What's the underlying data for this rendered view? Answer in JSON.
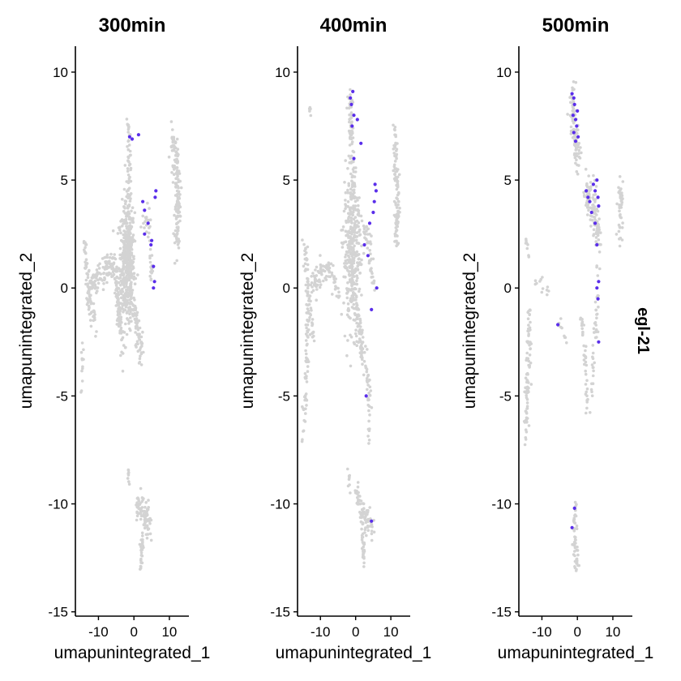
{
  "figure": {
    "feature_label": "egl-21",
    "colors": {
      "low": "#d3d3d3",
      "high": "#5a2eea",
      "axis": "#000000"
    }
  },
  "chart_data": [
    {
      "type": "scatter",
      "title": "300min",
      "xlabel": "umapunintegrated_1",
      "ylabel": "umapunintegrated_2",
      "xlim": [
        -16.5,
        15.5
      ],
      "ylim": [
        -15.2,
        11.2
      ],
      "xticks": [
        -10,
        0,
        10
      ],
      "xtick_labels": [
        "-10",
        "0",
        "10"
      ],
      "yticks": [
        -15,
        -10,
        -5,
        0,
        5,
        10
      ],
      "ytick_labels": [
        "-15",
        "-10",
        "-5",
        "0",
        "5",
        "10"
      ],
      "grid": false,
      "clusters": [
        {
          "shape": "blob",
          "x0": -2,
          "y0": 1.0,
          "rx": 2.0,
          "ry": 2.6,
          "n": 420
        },
        {
          "shape": "line",
          "points": [
            [
              -1.5,
              7.5
            ],
            [
              -1.2,
              4.0
            ],
            [
              -1.0,
              1.0
            ]
          ],
          "w": 0.5,
          "n": 90
        },
        {
          "shape": "line",
          "points": [
            [
              -1.2,
              0.0
            ],
            [
              0.5,
              -1.5
            ],
            [
              2.0,
              -3.0
            ]
          ],
          "w": 0.6,
          "n": 80
        },
        {
          "shape": "line",
          "points": [
            [
              -14,
              2.0
            ],
            [
              -12.5,
              -0.5
            ],
            [
              -11,
              -1.5
            ]
          ],
          "w": 0.5,
          "n": 70
        },
        {
          "shape": "line",
          "points": [
            [
              -13,
              0.0
            ],
            [
              -10,
              0.5
            ],
            [
              -7.0,
              1.0
            ]
          ],
          "w": 0.5,
          "n": 90
        },
        {
          "shape": "line",
          "points": [
            [
              -7.0,
              1.5
            ],
            [
              -5.0,
              0.5
            ],
            [
              -4.0,
              -1.5
            ]
          ],
          "w": 0.5,
          "n": 70
        },
        {
          "shape": "line",
          "points": [
            [
              -4.5,
              -0.5
            ],
            [
              -4.0,
              -2.0
            ],
            [
              -3.0,
              -3.0
            ]
          ],
          "w": 0.4,
          "n": 40
        },
        {
          "shape": "line",
          "points": [
            [
              -14.5,
              -2.5
            ],
            [
              -14.8,
              -4.8
            ]
          ],
          "w": 0.3,
          "n": 12
        },
        {
          "shape": "line",
          "points": [
            [
              11.0,
              7.0
            ],
            [
              12.5,
              4.5
            ],
            [
              12.0,
              2.0
            ]
          ],
          "w": 0.7,
          "n": 150
        },
        {
          "shape": "line",
          "points": [
            [
              2.0,
              3.0
            ],
            [
              4.0,
              3.5
            ],
            [
              5.0,
              0.5
            ]
          ],
          "w": 0.5,
          "n": 40
        },
        {
          "shape": "line",
          "points": [
            [
              1.0,
              -10.0
            ],
            [
              3.0,
              -10.5
            ],
            [
              4.5,
              -11.0
            ]
          ],
          "w": 0.6,
          "n": 90
        },
        {
          "shape": "line",
          "points": [
            [
              2.5,
              -11.5
            ],
            [
              1.8,
              -13.0
            ]
          ],
          "w": 0.3,
          "n": 30
        },
        {
          "shape": "line",
          "points": [
            [
              -1.5,
              -8.5
            ],
            [
              -1.3,
              -9.2
            ]
          ],
          "w": 0.2,
          "n": 8
        }
      ],
      "expressing": [
        [
          -1.2,
          7.0
        ],
        [
          -0.5,
          6.9
        ],
        [
          1.3,
          7.1
        ],
        [
          2.5,
          4.0
        ],
        [
          3.0,
          3.6
        ],
        [
          4.0,
          3.0
        ],
        [
          4.8,
          2.0
        ],
        [
          5.0,
          2.2
        ],
        [
          6.0,
          4.2
        ],
        [
          6.2,
          4.5
        ],
        [
          5.5,
          0.0
        ],
        [
          5.8,
          0.3
        ],
        [
          3.0,
          2.5
        ],
        [
          5.5,
          1.0
        ]
      ]
    },
    {
      "type": "scatter",
      "title": "400min",
      "xlabel": "umapunintegrated_1",
      "ylabel": "umapunintegrated_2",
      "xlim": [
        -16.5,
        15.5
      ],
      "ylim": [
        -15.2,
        11.2
      ],
      "xticks": [
        -10,
        0,
        10
      ],
      "xtick_labels": [
        "-10",
        "0",
        "10"
      ],
      "yticks": [
        -15,
        -10,
        -5,
        0,
        5,
        10
      ],
      "ytick_labels": [
        "-15",
        "-10",
        "-5",
        "0",
        "5",
        "10"
      ],
      "grid": false,
      "clusters": [
        {
          "shape": "blob",
          "x0": -1,
          "y0": 1.5,
          "rx": 2.3,
          "ry": 2.8,
          "n": 320
        },
        {
          "shape": "line",
          "points": [
            [
              -1.5,
              9.0
            ],
            [
              -1.0,
              6.0
            ],
            [
              -0.5,
              3.0
            ]
          ],
          "w": 0.6,
          "n": 90
        },
        {
          "shape": "line",
          "points": [
            [
              -13,
              8.5
            ],
            [
              -12.8,
              8.0
            ]
          ],
          "w": 0.2,
          "n": 6
        },
        {
          "shape": "line",
          "points": [
            [
              -13,
              0.0
            ],
            [
              -8.0,
              1.0
            ],
            [
              -5.0,
              0.0
            ]
          ],
          "w": 0.6,
          "n": 90
        },
        {
          "shape": "line",
          "points": [
            [
              -14.5,
              2.0
            ],
            [
              -13.5,
              -0.5
            ],
            [
              -12,
              -2.0
            ]
          ],
          "w": 0.5,
          "n": 60
        },
        {
          "shape": "line",
          "points": [
            [
              -13.5,
              -1.0
            ],
            [
              -14.0,
              -4.0
            ],
            [
              -14.8,
              -7.0
            ]
          ],
          "w": 0.5,
          "n": 60
        },
        {
          "shape": "line",
          "points": [
            [
              -1.0,
              0.0
            ],
            [
              2.0,
              -3.0
            ],
            [
              4.0,
              -5.0
            ]
          ],
          "w": 0.6,
          "n": 100
        },
        {
          "shape": "line",
          "points": [
            [
              3.5,
              -3.5
            ],
            [
              3.8,
              -7.0
            ]
          ],
          "w": 0.3,
          "n": 15
        },
        {
          "shape": "line",
          "points": [
            [
              11.0,
              7.0
            ],
            [
              12.0,
              4.5
            ],
            [
              11.5,
              1.8
            ]
          ],
          "w": 0.6,
          "n": 100
        },
        {
          "shape": "line",
          "points": [
            [
              2.0,
              3.0
            ],
            [
              4.0,
              2.0
            ],
            [
              5.0,
              0.0
            ]
          ],
          "w": 0.5,
          "n": 45
        },
        {
          "shape": "line",
          "points": [
            [
              0.0,
              -9.5
            ],
            [
              2.0,
              -10.5
            ],
            [
              5.0,
              -11.0
            ]
          ],
          "w": 0.6,
          "n": 80
        },
        {
          "shape": "line",
          "points": [
            [
              2.0,
              -11.5
            ],
            [
              2.5,
              -13.0
            ]
          ],
          "w": 0.3,
          "n": 25
        },
        {
          "shape": "line",
          "points": [
            [
              -2.0,
              -8.5
            ],
            [
              -1.7,
              -9.5
            ]
          ],
          "w": 0.2,
          "n": 8
        }
      ],
      "expressing": [
        [
          -1.5,
          8.8
        ],
        [
          -1.2,
          8.5
        ],
        [
          -0.8,
          9.1
        ],
        [
          -1.0,
          7.5
        ],
        [
          -0.5,
          8.0
        ],
        [
          0.5,
          7.8
        ],
        [
          1.5,
          6.7
        ],
        [
          -0.5,
          6.0
        ],
        [
          5.5,
          4.8
        ],
        [
          5.8,
          4.5
        ],
        [
          5.3,
          4.0
        ],
        [
          5.0,
          3.5
        ],
        [
          4.0,
          3.0
        ],
        [
          2.5,
          2.0
        ],
        [
          3.5,
          1.5
        ],
        [
          6.0,
          0.0
        ],
        [
          4.5,
          -1.0
        ],
        [
          3.0,
          -5.0
        ],
        [
          4.5,
          -10.8
        ]
      ]
    },
    {
      "type": "scatter",
      "title": "500min",
      "xlabel": "umapunintegrated_1",
      "ylabel": "umapunintegrated_2",
      "xlim": [
        -16.5,
        15.5
      ],
      "ylim": [
        -15.2,
        11.2
      ],
      "xticks": [
        -10,
        0,
        10
      ],
      "xtick_labels": [
        "-10",
        "0",
        "10"
      ],
      "yticks": [
        -15,
        -10,
        -5,
        0,
        5,
        10
      ],
      "ytick_labels": [
        "-15",
        "-10",
        "-5",
        "0",
        "5",
        "10"
      ],
      "grid": false,
      "clusters": [
        {
          "shape": "line",
          "points": [
            [
              -13.5,
              -1.0
            ],
            [
              -14.0,
              -4.0
            ],
            [
              -14.5,
              -7.0
            ]
          ],
          "w": 0.5,
          "n": 80
        },
        {
          "shape": "line",
          "points": [
            [
              -14.5,
              2.2
            ],
            [
              -13.5,
              1.5
            ]
          ],
          "w": 0.2,
          "n": 8
        },
        {
          "shape": "line",
          "points": [
            [
              -12.0,
              0.3
            ],
            [
              -9.0,
              0.2
            ],
            [
              -8.0,
              -0.5
            ]
          ],
          "w": 0.3,
          "n": 12
        },
        {
          "shape": "line",
          "points": [
            [
              -1.5,
              9.0
            ],
            [
              -0.5,
              7.0
            ],
            [
              0.0,
              5.8
            ]
          ],
          "w": 0.8,
          "n": 90
        },
        {
          "shape": "line",
          "points": [
            [
              2.5,
              4.5
            ],
            [
              5.0,
              3.5
            ],
            [
              6.0,
              2.0
            ]
          ],
          "w": 0.8,
          "n": 110
        },
        {
          "shape": "line",
          "points": [
            [
              6.0,
              1.0
            ],
            [
              5.0,
              -2.0
            ],
            [
              4.0,
              -5.0
            ]
          ],
          "w": 0.5,
          "n": 40
        },
        {
          "shape": "line",
          "points": [
            [
              1.0,
              -1.0
            ],
            [
              2.0,
              -3.0
            ],
            [
              3.0,
              -5.5
            ]
          ],
          "w": 0.4,
          "n": 40
        },
        {
          "shape": "line",
          "points": [
            [
              12.0,
              4.5
            ],
            [
              12.5,
              3.5
            ],
            [
              12.0,
              2.5
            ]
          ],
          "w": 0.6,
          "n": 45
        },
        {
          "shape": "line",
          "points": [
            [
              -0.5,
              -10.0
            ],
            [
              -1.0,
              -11.5
            ],
            [
              0.0,
              -13.0
            ]
          ],
          "w": 0.5,
          "n": 50
        },
        {
          "shape": "line",
          "points": [
            [
              -5.5,
              -1.5
            ],
            [
              -3.0,
              -2.5
            ]
          ],
          "w": 0.3,
          "n": 10
        }
      ],
      "expressing": [
        [
          -1.5,
          9.0
        ],
        [
          -1.0,
          8.8
        ],
        [
          -0.8,
          8.5
        ],
        [
          -1.2,
          8.0
        ],
        [
          -0.5,
          7.8
        ],
        [
          -0.2,
          7.5
        ],
        [
          0.0,
          8.2
        ],
        [
          -1.0,
          7.2
        ],
        [
          -0.5,
          6.8
        ],
        [
          0.2,
          7.0
        ],
        [
          2.5,
          4.5
        ],
        [
          3.0,
          4.2
        ],
        [
          3.5,
          4.0
        ],
        [
          4.5,
          4.8
        ],
        [
          5.0,
          4.5
        ],
        [
          5.5,
          5.0
        ],
        [
          5.8,
          4.2
        ],
        [
          6.0,
          3.8
        ],
        [
          4.0,
          3.5
        ],
        [
          5.0,
          3.0
        ],
        [
          5.5,
          2.0
        ],
        [
          6.0,
          0.3
        ],
        [
          5.8,
          -0.5
        ],
        [
          5.5,
          0.0
        ],
        [
          6.0,
          -2.5
        ],
        [
          -0.8,
          -10.2
        ],
        [
          -1.5,
          -11.1
        ],
        [
          -5.5,
          -1.7
        ]
      ]
    }
  ]
}
